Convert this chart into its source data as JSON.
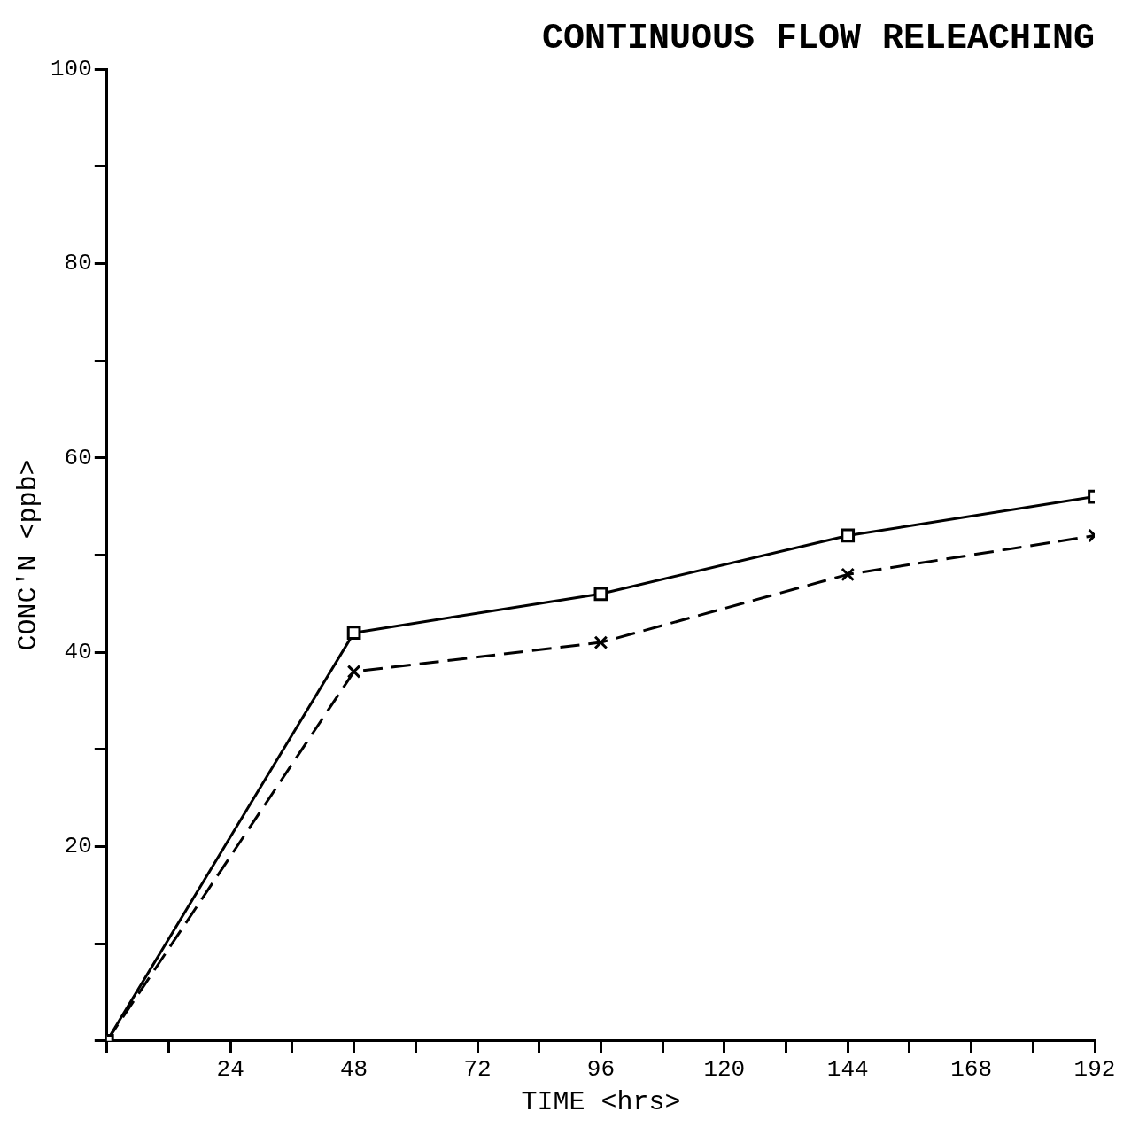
{
  "chart_data": {
    "type": "line",
    "title": "CONTINUOUS FLOW RELEACHING",
    "xlabel": "TIME <hrs>",
    "ylabel": "CONC'N <ppb>",
    "x": [
      0,
      48,
      96,
      144,
      192
    ],
    "series": [
      {
        "color": "#000000",
        "values": [
          0,
          42,
          46,
          52,
          56
        ],
        "marker": "square",
        "line_style": "solid"
      },
      {
        "color": "#000000",
        "values": [
          0,
          38,
          41,
          48,
          52
        ],
        "marker": "cross",
        "line_style": "dashed"
      }
    ],
    "xlim": [
      0,
      192
    ],
    "xticks": [
      {
        "value": 0,
        "label": null
      },
      {
        "value": 12,
        "label": null
      },
      24,
      {
        "value": 36,
        "label": null
      },
      48,
      {
        "value": 60,
        "label": null
      },
      72,
      {
        "value": 84,
        "label": null
      },
      96,
      {
        "value": 108,
        "label": null
      },
      120,
      {
        "value": 132,
        "label": null
      },
      144,
      {
        "value": 156,
        "label": null
      },
      168,
      {
        "value": 180,
        "label": null
      },
      192
    ],
    "ylim": [
      0,
      100
    ],
    "yticks": [
      {
        "value": 0,
        "label": null
      },
      {
        "value": 10,
        "label": null
      },
      20,
      {
        "value": 30,
        "label": null
      },
      40,
      {
        "value": 50,
        "label": null
      },
      60,
      {
        "value": 70,
        "label": null
      },
      80,
      {
        "value": 90,
        "label": null
      },
      100
    ],
    "grid": false,
    "legend": false
  }
}
